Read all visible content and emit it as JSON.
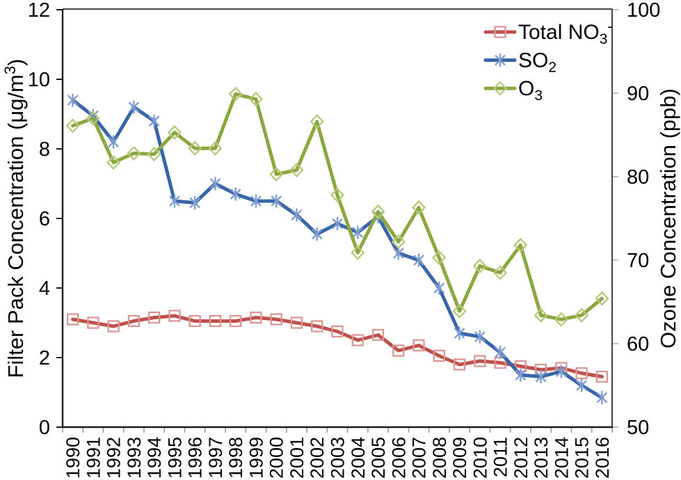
{
  "chart_data": {
    "type": "line",
    "title": "",
    "x_categories": [
      "1990",
      "1991",
      "1992",
      "1993",
      "1994",
      "1995",
      "1996",
      "1997",
      "1998",
      "1999",
      "2000",
      "2001",
      "2002",
      "2003",
      "2004",
      "2005",
      "2006",
      "2007",
      "2008",
      "2009",
      "2010",
      "2011",
      "2012",
      "2013",
      "2014",
      "2015",
      "2016"
    ],
    "left_axis": {
      "label": "Filter Pack Concentration (μg/m³)",
      "label_segments": [
        {
          "t": "Filter Pack Concentration (μg/m",
          "s": "n"
        },
        {
          "t": "3",
          "s": "sup"
        },
        {
          "t": ")",
          "s": "n"
        }
      ],
      "min": 0,
      "max": 12,
      "ticks": [
        0,
        2,
        4,
        6,
        8,
        10,
        12
      ]
    },
    "right_axis": {
      "label": "Ozone Concentration (ppb)",
      "label_segments": [
        {
          "t": "Ozone Concentration (ppb)",
          "s": "n"
        }
      ],
      "min": 50,
      "max": 100,
      "ticks": [
        50,
        60,
        70,
        80,
        90,
        100
      ]
    },
    "series": [
      {
        "id": "total-no3",
        "name": "Total NO₃⁻",
        "name_segments": [
          {
            "t": "Total NO",
            "s": "n"
          },
          {
            "t": "3",
            "s": "sub"
          },
          {
            "t": "-",
            "s": "sup"
          }
        ],
        "axis": "left",
        "marker": "square",
        "line_color": "#c0504d",
        "marker_color": "#d99693",
        "values": [
          3.1,
          3.0,
          2.9,
          3.05,
          3.15,
          3.2,
          3.05,
          3.05,
          3.05,
          3.15,
          3.1,
          3.0,
          2.9,
          2.75,
          2.5,
          2.65,
          2.2,
          2.35,
          2.05,
          1.8,
          1.9,
          1.85,
          1.75,
          1.65,
          1.7,
          1.55,
          1.45
        ]
      },
      {
        "id": "so2",
        "name": "SO₂",
        "name_segments": [
          {
            "t": "SO",
            "s": "n"
          },
          {
            "t": "2",
            "s": "sub"
          }
        ],
        "axis": "left",
        "marker": "asterisk",
        "line_color": "#3866a8",
        "marker_color": "#7e9cd0",
        "values": [
          9.4,
          8.95,
          8.2,
          9.2,
          8.8,
          6.5,
          6.45,
          7.0,
          6.7,
          6.5,
          6.5,
          6.1,
          5.55,
          5.85,
          5.6,
          6.05,
          5.0,
          4.8,
          4.0,
          2.7,
          2.6,
          2.15,
          1.5,
          1.45,
          1.6,
          1.2,
          0.85
        ]
      },
      {
        "id": "o3",
        "name": "O₃",
        "name_segments": [
          {
            "t": "O",
            "s": "n"
          },
          {
            "t": "3",
            "s": "sub"
          }
        ],
        "axis": "right",
        "marker": "diamond",
        "line_color": "#8aa83f",
        "marker_color": "#b5c97a",
        "values": [
          86.1,
          87.0,
          81.7,
          82.8,
          82.7,
          85.3,
          83.4,
          83.4,
          89.9,
          89.3,
          80.3,
          80.8,
          86.6,
          77.8,
          70.9,
          75.8,
          72.2,
          76.3,
          70.3,
          63.9,
          69.3,
          68.5,
          71.8,
          63.4,
          62.9,
          63.4,
          65.4
        ]
      }
    ],
    "legend_position": "top-right",
    "grid": false,
    "colors": {
      "axis_left_bottom": "#1a1a1a",
      "axis_top_right": "#454545",
      "x_tick": "#9e9e9e",
      "right_tick": "#bfbfbf",
      "text": "#000000",
      "background": "#ffffff"
    }
  }
}
